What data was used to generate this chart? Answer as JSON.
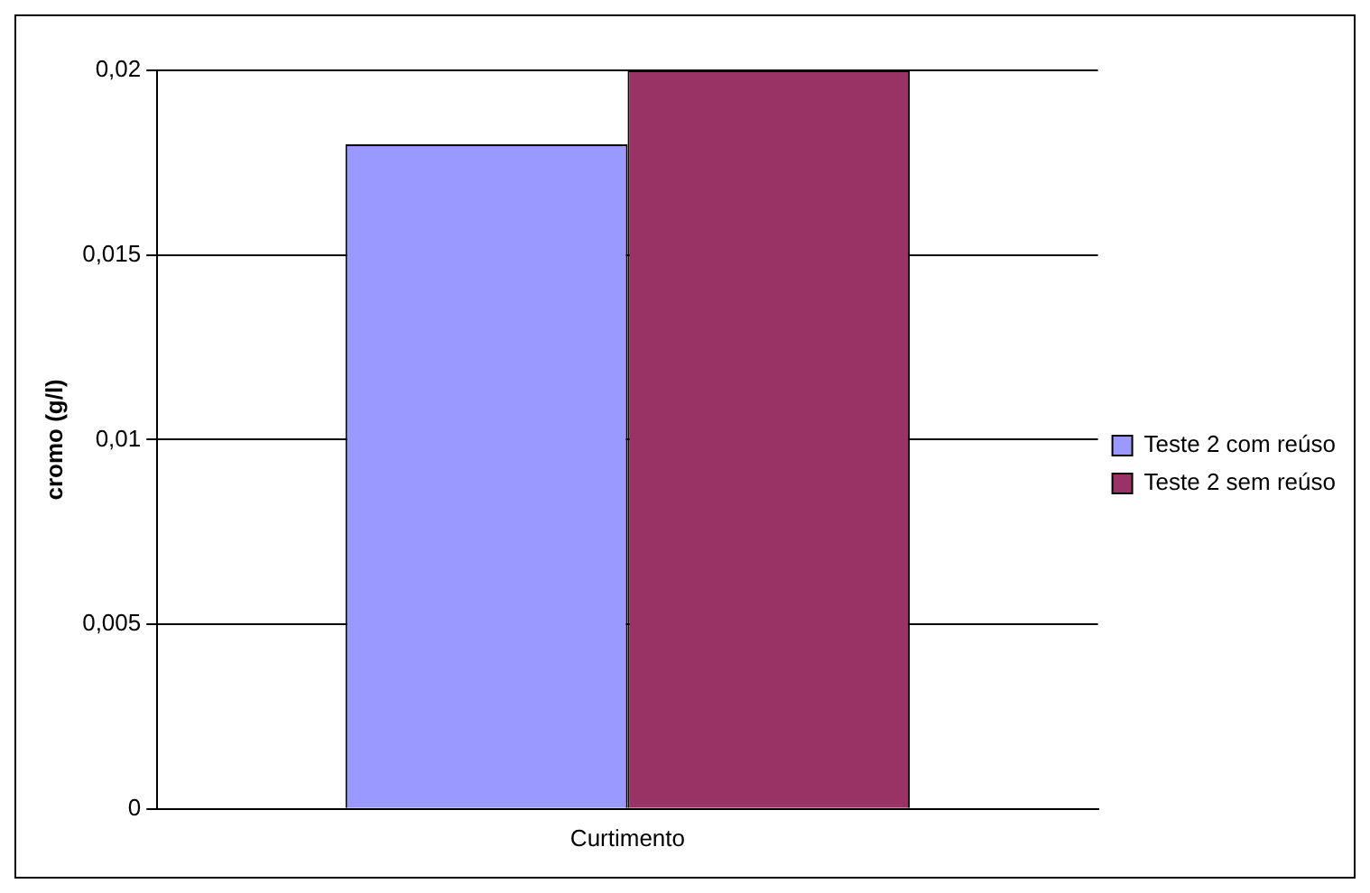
{
  "chart_data": {
    "type": "bar",
    "ylabel": "cromo (g/l)",
    "categories": [
      "Curtimento"
    ],
    "series": [
      {
        "name": "Teste 2 com reúso",
        "color": "#9999ff",
        "values": [
          0.018
        ]
      },
      {
        "name": "Teste 2 sem reúso",
        "color": "#993366",
        "values": [
          0.02
        ]
      }
    ],
    "ylim": [
      0,
      0.02
    ],
    "yticks": [
      {
        "value": 0,
        "label": "0"
      },
      {
        "value": 0.005,
        "label": "0,005"
      },
      {
        "value": 0.01,
        "label": "0,01"
      },
      {
        "value": 0.015,
        "label": "0,015"
      },
      {
        "value": 0.02,
        "label": "0,02"
      }
    ],
    "grid": "y",
    "legend": "right"
  }
}
